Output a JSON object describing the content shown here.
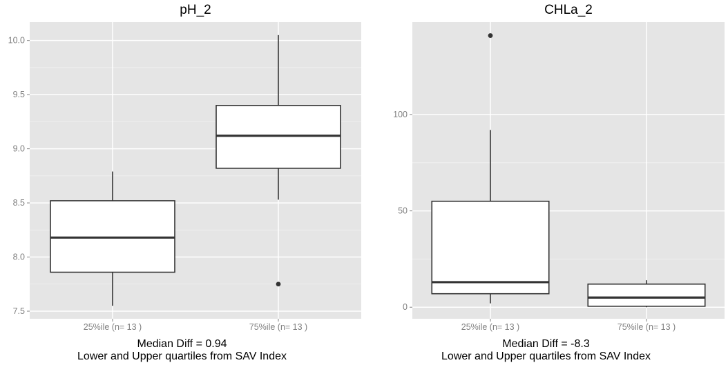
{
  "chart_data": [
    {
      "type": "boxplot",
      "title": "pH_2",
      "categories": [
        "25%ile (n= 13 )",
        "75%ile (n= 13 )"
      ],
      "boxes": [
        {
          "whisker_low": 7.55,
          "q1": 7.86,
          "median": 8.18,
          "q3": 8.52,
          "whisker_high": 8.79,
          "outliers": []
        },
        {
          "whisker_low": 8.53,
          "q1": 8.82,
          "median": 9.12,
          "q3": 9.4,
          "whisker_high": 10.05,
          "outliers": [
            7.75
          ]
        }
      ],
      "ylim": [
        7.43,
        10.17
      ],
      "yticks": [
        7.5,
        8.0,
        8.5,
        9.0,
        9.5,
        10.0
      ],
      "ytick_labels": [
        "7.5",
        "8.0",
        "8.5",
        "9.0",
        "9.5",
        "10.0"
      ],
      "grid": true,
      "annotation_line1": "Median Diff =  0.94",
      "annotation_line2": "Lower and Upper quartiles from SAV Index"
    },
    {
      "type": "boxplot",
      "title": "CHLa_2",
      "categories": [
        "25%ile (n= 13 )",
        "75%ile (n= 13 )"
      ],
      "boxes": [
        {
          "whisker_low": 2,
          "q1": 7,
          "median": 13,
          "q3": 55,
          "whisker_high": 92,
          "outliers": [
            141
          ]
        },
        {
          "whisker_low": 0,
          "q1": 0.5,
          "median": 5,
          "q3": 12,
          "whisker_high": 14,
          "outliers": []
        }
      ],
      "ylim": [
        -6,
        148
      ],
      "yticks": [
        0,
        50,
        100
      ],
      "ytick_labels": [
        "0",
        "50",
        "100"
      ],
      "grid": true,
      "annotation_line1": "Median Diff =  -8.3",
      "annotation_line2": "Lower and Upper quartiles from SAV Index"
    }
  ]
}
